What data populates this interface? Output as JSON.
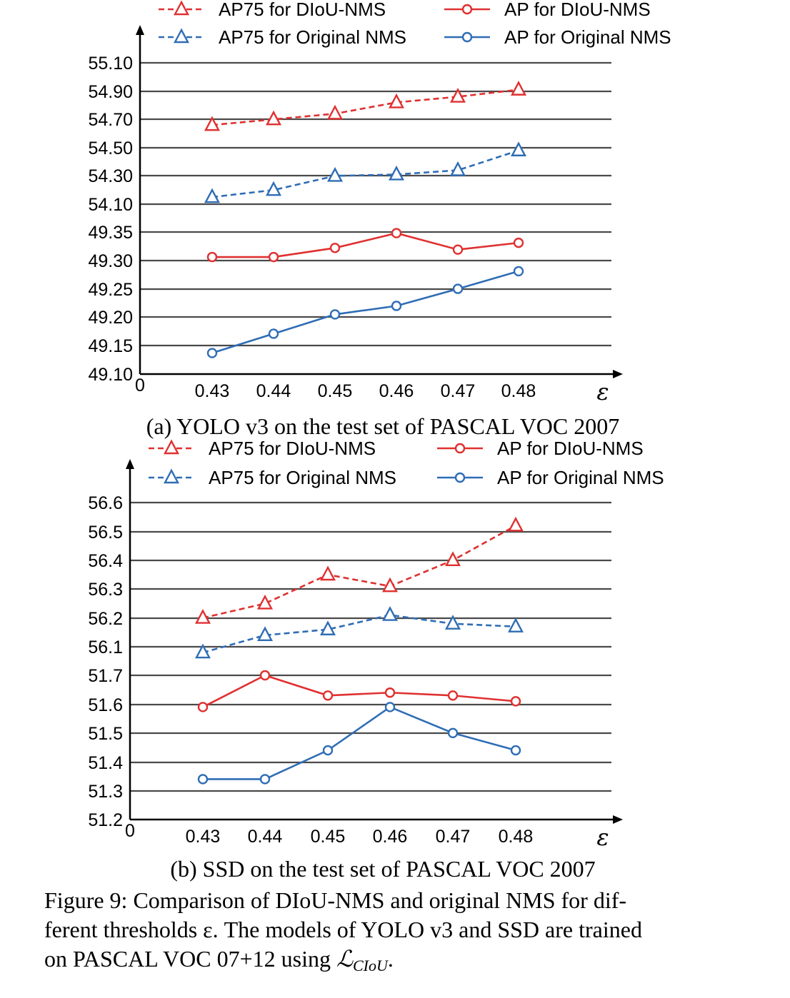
{
  "chart_data": [
    {
      "type": "line",
      "caption": "(a) YOLO v3 on the test set of PASCAL VOC 2007",
      "categories": [
        "0.43",
        "0.44",
        "0.45",
        "0.46",
        "0.47",
        "0.48"
      ],
      "origin_label": "0",
      "xlabel": "ε",
      "axis_break": true,
      "ytick_labels": [
        "49.10",
        "49.15",
        "49.20",
        "49.25",
        "49.30",
        "49.35",
        "54.10",
        "54.30",
        "54.50",
        "54.70",
        "54.90",
        "55.10"
      ],
      "y_segments": [
        {
          "range": [
            49.1,
            49.35
          ]
        },
        {
          "range": [
            54.1,
            55.1
          ]
        }
      ],
      "grid": true,
      "legend_position": "top",
      "series": [
        {
          "name": "AP75 for DIoU-NMS",
          "color": "#e03030",
          "marker": "triangle",
          "dash": true,
          "values": [
            54.66,
            54.7,
            54.74,
            54.82,
            54.86,
            54.91
          ]
        },
        {
          "name": "AP75 for Original NMS",
          "color": "#2f6db5",
          "marker": "triangle",
          "dash": true,
          "values": [
            54.15,
            54.2,
            54.3,
            54.31,
            54.34,
            54.48
          ]
        },
        {
          "name": "AP for DIoU-NMS",
          "color": "#e03030",
          "marker": "circle",
          "dash": false,
          "values": [
            49.306,
            49.306,
            49.322,
            49.348,
            49.319,
            49.331
          ]
        },
        {
          "name": "AP for Original NMS",
          "color": "#2f6db5",
          "marker": "circle",
          "dash": false,
          "values": [
            49.137,
            49.171,
            49.205,
            49.22,
            49.25,
            49.281
          ]
        }
      ]
    },
    {
      "type": "line",
      "caption": "(b) SSD on the test set of PASCAL VOC 2007",
      "categories": [
        "0.43",
        "0.44",
        "0.45",
        "0.46",
        "0.47",
        "0.48"
      ],
      "origin_label": "0",
      "xlabel": "ε",
      "axis_break": true,
      "ytick_labels": [
        "51.2",
        "51.3",
        "51.4",
        "51.5",
        "51.6",
        "51.7",
        "56.1",
        "56.2",
        "56.3",
        "56.4",
        "56.5",
        "56.6"
      ],
      "y_segments": [
        {
          "range": [
            51.2,
            51.7
          ]
        },
        {
          "range": [
            56.1,
            56.6
          ]
        }
      ],
      "grid": true,
      "legend_position": "top",
      "series": [
        {
          "name": "AP75 for DIoU-NMS",
          "color": "#e03030",
          "marker": "triangle",
          "dash": true,
          "values": [
            56.2,
            56.25,
            56.35,
            56.31,
            56.4,
            56.52
          ]
        },
        {
          "name": "AP75 for Original NMS",
          "color": "#2f6db5",
          "marker": "triangle",
          "dash": true,
          "values": [
            56.08,
            56.14,
            56.16,
            56.21,
            56.18,
            56.17
          ]
        },
        {
          "name": "AP for DIoU-NMS",
          "color": "#e03030",
          "marker": "circle",
          "dash": false,
          "values": [
            51.59,
            51.7,
            51.63,
            51.64,
            51.63,
            51.61
          ]
        },
        {
          "name": "AP for Original NMS",
          "color": "#2f6db5",
          "marker": "circle",
          "dash": false,
          "values": [
            51.34,
            51.34,
            51.44,
            51.59,
            51.5,
            51.44
          ]
        }
      ]
    }
  ],
  "figure_caption": {
    "line1": "Figure 9: Comparison of DIoU-NMS and original NMS for dif-",
    "line2": "ferent thresholds ε. The models of YOLO v3 and SSD are trained",
    "line3_prefix": "on PASCAL VOC 07+12 using ",
    "line3_math": "ℒ",
    "line3_sub": "CIoU",
    "line3_suffix": "."
  }
}
